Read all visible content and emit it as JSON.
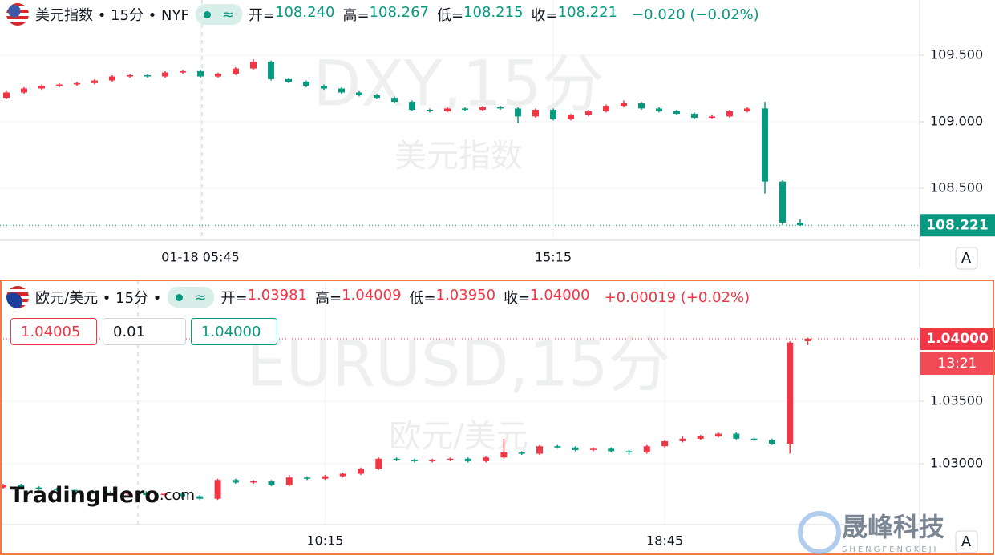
{
  "chart_data": [
    {
      "type": "candlestick",
      "title": "美元指数 • 15分 • NYF",
      "status": "≈",
      "ohlc_labels": [
        "开=",
        "高=",
        "低=",
        "收="
      ],
      "ohlc_values": [
        "108.240",
        "108.267",
        "108.215",
        "108.221"
      ],
      "change": "−0.020 (−0.02%)",
      "watermark": "DXY,15分",
      "watermark_subtitle": "美元指数",
      "last_price_label": "108.221",
      "axis_button": "A",
      "up_color": "#f23645",
      "down_color": "#089981",
      "grid": true,
      "ylim": [
        108.108,
        109.916
      ],
      "yticks": [
        {
          "value": 109.5,
          "label": "109.500"
        },
        {
          "value": 109.0,
          "label": "109.000"
        },
        {
          "value": 108.5,
          "label": "108.500"
        }
      ],
      "categories": [
        null,
        null,
        null,
        null,
        null,
        null,
        null,
        null,
        null,
        null,
        null,
        "01-18 05:45",
        null,
        null,
        null,
        null,
        null,
        null,
        null,
        null,
        null,
        null,
        null,
        null,
        null,
        null,
        null,
        null,
        null,
        null,
        null,
        "15:15",
        null,
        null,
        null,
        null,
        null,
        null,
        null,
        null,
        null,
        null,
        null,
        null,
        null,
        null
      ],
      "open": [
        109.18,
        109.22,
        109.25,
        109.27,
        109.28,
        109.29,
        109.31,
        109.34,
        109.35,
        109.34,
        109.37,
        109.38,
        109.34,
        109.36,
        109.4,
        109.45,
        109.32,
        109.3,
        109.27,
        109.25,
        109.22,
        109.2,
        109.18,
        109.15,
        109.09,
        109.08,
        109.1,
        109.09,
        109.11,
        109.1,
        109.04,
        109.09,
        109.02,
        109.05,
        109.08,
        109.12,
        109.14,
        109.1,
        109.08,
        109.06,
        109.03,
        109.04,
        109.08,
        109.1,
        108.55,
        108.24
      ],
      "high": [
        109.23,
        109.26,
        109.28,
        109.29,
        109.3,
        109.32,
        109.35,
        109.36,
        109.36,
        109.38,
        109.39,
        109.39,
        109.37,
        109.41,
        109.47,
        109.46,
        109.33,
        109.31,
        109.28,
        109.26,
        109.23,
        109.21,
        109.19,
        109.16,
        109.1,
        109.11,
        109.11,
        109.12,
        109.12,
        109.11,
        109.1,
        109.1,
        109.06,
        109.09,
        109.13,
        109.16,
        109.15,
        109.11,
        109.09,
        109.07,
        109.05,
        109.09,
        109.11,
        109.15,
        108.56,
        108.267
      ],
      "low": [
        109.17,
        109.21,
        109.24,
        109.26,
        109.27,
        109.28,
        109.3,
        109.33,
        109.33,
        109.33,
        109.36,
        109.33,
        109.33,
        109.35,
        109.39,
        109.31,
        109.29,
        109.26,
        109.24,
        109.21,
        109.19,
        109.17,
        109.14,
        109.08,
        109.07,
        109.07,
        109.08,
        109.08,
        109.09,
        108.99,
        109.03,
        109.01,
        109.01,
        109.04,
        109.07,
        109.11,
        109.09,
        109.07,
        109.05,
        109.02,
        109.02,
        109.03,
        109.07,
        108.46,
        108.22,
        108.215
      ],
      "close": [
        109.22,
        109.25,
        109.27,
        109.28,
        109.29,
        109.31,
        109.34,
        109.35,
        109.34,
        109.37,
        109.38,
        109.34,
        109.36,
        109.4,
        109.45,
        109.32,
        109.3,
        109.27,
        109.25,
        109.22,
        109.2,
        109.18,
        109.15,
        109.09,
        109.08,
        109.1,
        109.09,
        109.11,
        109.1,
        109.04,
        109.09,
        109.02,
        109.05,
        109.08,
        109.12,
        109.14,
        109.1,
        109.08,
        109.06,
        109.03,
        109.04,
        109.08,
        109.1,
        108.55,
        108.24,
        108.221
      ]
    },
    {
      "type": "candlestick",
      "title": "欧元/美元 • 15分 •",
      "status": "≈",
      "ohlc_labels": [
        "开=",
        "高=",
        "低=",
        "收="
      ],
      "ohlc_values": [
        "1.03981",
        "1.04009",
        "1.03950",
        "1.04000"
      ],
      "change": "+0.00019 (+0.02%)",
      "buttons": [
        "1.04005",
        "0.01",
        "1.04000"
      ],
      "watermark": "EURUSD,15分",
      "watermark_subtitle": "欧元/美元",
      "last_price_label": "1.04000",
      "countdown": "13:21",
      "axis_button": "A",
      "up_color": "#f23645",
      "down_color": "#089981",
      "grid": true,
      "ylim": [
        1.02513,
        1.04468
      ],
      "yticks": [
        {
          "value": 1.035,
          "label": "1.03500"
        },
        {
          "value": 1.03,
          "label": "1.03000"
        }
      ],
      "categories": [
        null,
        null,
        null,
        null,
        null,
        null,
        null,
        null,
        null,
        null,
        null,
        null,
        null,
        null,
        null,
        null,
        null,
        null,
        "10:15",
        null,
        null,
        null,
        null,
        null,
        null,
        null,
        null,
        null,
        null,
        null,
        null,
        null,
        null,
        null,
        null,
        null,
        null,
        "18:45",
        null,
        null,
        null,
        null,
        null,
        null,
        null,
        null
      ],
      "open": [
        1.0281,
        1.0283,
        1.0281,
        1.028,
        1.0279,
        1.0278,
        1.0277,
        1.0276,
        1.0277,
        1.0275,
        1.0276,
        1.0274,
        1.0272,
        1.0287,
        1.0285,
        1.0286,
        1.0283,
        1.0289,
        1.0288,
        1.029,
        1.0292,
        1.0296,
        1.0304,
        1.0303,
        1.0302,
        1.0303,
        1.0304,
        1.0302,
        1.0305,
        1.0309,
        1.0308,
        1.0314,
        1.0313,
        1.0311,
        1.0312,
        1.031,
        1.0309,
        1.0314,
        1.0318,
        1.032,
        1.0322,
        1.0324,
        1.032,
        1.0319,
        1.0316,
        1.03981
      ],
      "high": [
        1.0284,
        1.0284,
        1.0282,
        1.0281,
        1.028,
        1.0279,
        1.0278,
        1.0278,
        1.0278,
        1.0277,
        1.0277,
        1.0275,
        1.0288,
        1.0288,
        1.0287,
        1.0287,
        1.0291,
        1.029,
        1.0291,
        1.0293,
        1.0297,
        1.0305,
        1.0305,
        1.0304,
        1.0304,
        1.0305,
        1.0305,
        1.0306,
        1.032,
        1.031,
        1.0315,
        1.0315,
        1.0314,
        1.0313,
        1.0313,
        1.0311,
        1.0315,
        1.0319,
        1.0322,
        1.0323,
        1.0325,
        1.0325,
        1.0321,
        1.032,
        1.0398,
        1.04009
      ],
      "low": [
        1.028,
        1.028,
        1.0279,
        1.0278,
        1.0277,
        1.0276,
        1.0275,
        1.0275,
        1.0274,
        1.0274,
        1.0272,
        1.0271,
        1.0271,
        1.0284,
        1.0284,
        1.0282,
        1.0282,
        1.0287,
        1.0287,
        1.0289,
        1.0291,
        1.0295,
        1.0302,
        1.0301,
        1.0301,
        1.0302,
        1.0301,
        1.0301,
        1.0304,
        1.0307,
        1.0307,
        1.0312,
        1.031,
        1.031,
        1.0309,
        1.0307,
        1.0308,
        1.0313,
        1.0317,
        1.0319,
        1.0321,
        1.0319,
        1.0318,
        1.0315,
        1.0308,
        1.0395
      ],
      "close": [
        1.0283,
        1.0281,
        1.028,
        1.0279,
        1.0278,
        1.0277,
        1.0276,
        1.0277,
        1.0275,
        1.0276,
        1.0274,
        1.0272,
        1.0287,
        1.0285,
        1.0286,
        1.0283,
        1.0289,
        1.0288,
        1.029,
        1.0292,
        1.0296,
        1.0304,
        1.0303,
        1.0302,
        1.0303,
        1.0304,
        1.0302,
        1.0305,
        1.0309,
        1.0308,
        1.0314,
        1.0313,
        1.0311,
        1.0312,
        1.031,
        1.0309,
        1.0314,
        1.0318,
        1.032,
        1.0322,
        1.0324,
        1.032,
        1.0319,
        1.0316,
        1.0397,
        1.04
      ]
    }
  ],
  "branding": {
    "logo": "TradingHero",
    "logo_suffix": ".com",
    "company": "晟峰科技",
    "company_pinyin": "SHENGFENGKEJI"
  }
}
